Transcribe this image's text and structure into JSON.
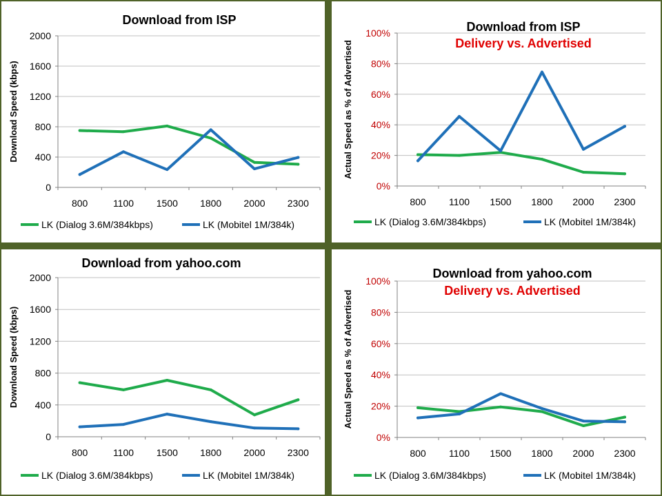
{
  "chart_data": [
    {
      "type": "line",
      "title": "Download from ISP",
      "subtitle": "",
      "ylabel": "Download Speed (kbps)",
      "xlabel": "",
      "categories": [
        "800",
        "1100",
        "1500",
        "1800",
        "2000",
        "2300"
      ],
      "ylim": [
        0,
        2000
      ],
      "yticks": [
        "0",
        "400",
        "800",
        "1200",
        "1600",
        "2000"
      ],
      "grid": true,
      "legend_position": "bottom",
      "series": [
        {
          "name": "LK (Dialog 3.6M/384kbps)",
          "color": "#1fab4b",
          "values": [
            750,
            735,
            810,
            650,
            330,
            305
          ]
        },
        {
          "name": "LK (Mobitel 1M/384k)",
          "color": "#1f70b8",
          "values": [
            170,
            470,
            235,
            760,
            245,
            395
          ]
        }
      ]
    },
    {
      "type": "line",
      "title": "Download from ISP",
      "subtitle": "Delivery vs. Advertised",
      "ylabel": "Actual Speed as % of Advertised",
      "xlabel": "",
      "categories": [
        "800",
        "1100",
        "1500",
        "1800",
        "2000",
        "2300"
      ],
      "ylim": [
        0,
        100
      ],
      "yticks": [
        "0%",
        "20%",
        "40%",
        "60%",
        "80%",
        "100%"
      ],
      "grid": true,
      "legend_position": "bottom",
      "series": [
        {
          "name": "LK (Dialog 3.6M/384kbps)",
          "color": "#1fab4b",
          "values": [
            20.5,
            20,
            22,
            17.5,
            9,
            8
          ]
        },
        {
          "name": "LK (Mobitel 1M/384k)",
          "color": "#1f70b8",
          "values": [
            16.5,
            45.5,
            23,
            74.5,
            24,
            39
          ]
        }
      ]
    },
    {
      "type": "line",
      "title": "Download from yahoo.com",
      "subtitle": "",
      "ylabel": "Download Speed (kbps)",
      "xlabel": "",
      "categories": [
        "800",
        "1100",
        "1500",
        "1800",
        "2000",
        "2300"
      ],
      "ylim": [
        0,
        2000
      ],
      "yticks": [
        "0",
        "400",
        "800",
        "1200",
        "1600",
        "2000"
      ],
      "grid": true,
      "legend_position": "bottom",
      "series": [
        {
          "name": "LK (Dialog 3.6M/384kbps)",
          "color": "#1fab4b",
          "values": [
            680,
            590,
            710,
            590,
            275,
            465
          ]
        },
        {
          "name": "LK (Mobitel 1M/384k)",
          "color": "#1f70b8",
          "values": [
            125,
            155,
            285,
            190,
            110,
            100
          ]
        }
      ]
    },
    {
      "type": "line",
      "title": "Download from yahoo.com",
      "subtitle": "Delivery vs. Advertised",
      "ylabel": "Actual Speed as % of Advertised",
      "xlabel": "",
      "categories": [
        "800",
        "1100",
        "1500",
        "1800",
        "2000",
        "2300"
      ],
      "ylim": [
        0,
        100
      ],
      "yticks": [
        "0%",
        "20%",
        "40%",
        "60%",
        "80%",
        "100%"
      ],
      "grid": true,
      "legend_position": "bottom",
      "series": [
        {
          "name": "LK (Dialog 3.6M/384kbps)",
          "color": "#1fab4b",
          "values": [
            19,
            16.5,
            19.5,
            16.5,
            7.5,
            13
          ]
        },
        {
          "name": "LK (Mobitel 1M/384k)",
          "color": "#1f70b8",
          "values": [
            12.5,
            15,
            28,
            18.5,
            10.5,
            10
          ]
        }
      ]
    }
  ],
  "style": {
    "tick_color_kbps": "#000000",
    "tick_color_percent": "#c00000",
    "subtitle_color": "#e00000",
    "grid_color": "#bfbfbf",
    "background": "#4f6228"
  }
}
